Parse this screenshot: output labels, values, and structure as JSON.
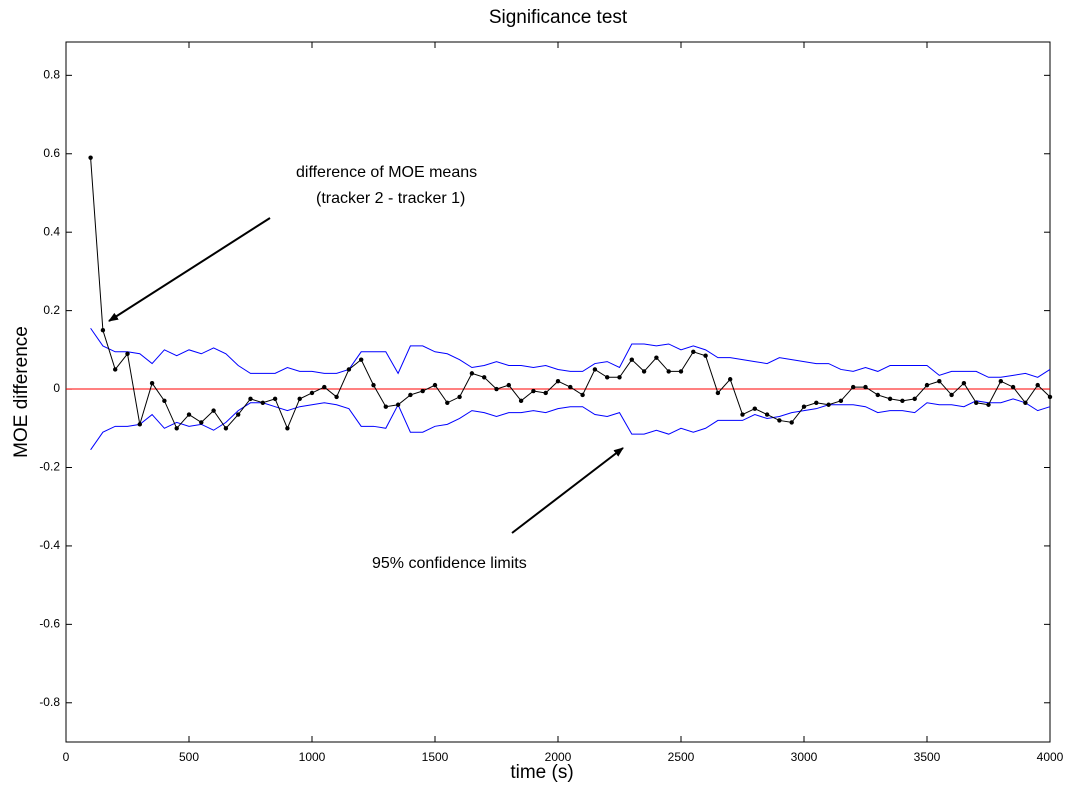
{
  "chart_data": {
    "type": "line",
    "title": "Significance test",
    "x_label": "time (s)",
    "y_label": "MOE difference",
    "xlim": [
      0,
      4000
    ],
    "xticks": [
      0,
      500,
      1000,
      1500,
      2000,
      2500,
      3000,
      3500,
      4000
    ],
    "ylim": [
      -0.9,
      0.885
    ],
    "yticks": [
      -0.8,
      -0.6,
      -0.4,
      -0.2,
      0,
      0.2,
      0.4,
      0.6,
      0.8
    ],
    "x": [
      100,
      150,
      200,
      250,
      300,
      350,
      400,
      450,
      500,
      550,
      600,
      650,
      700,
      750,
      800,
      850,
      900,
      950,
      1000,
      1050,
      1100,
      1150,
      1200,
      1250,
      1300,
      1350,
      1400,
      1450,
      1500,
      1550,
      1600,
      1650,
      1700,
      1750,
      1800,
      1850,
      1900,
      1950,
      2000,
      2050,
      2100,
      2150,
      2200,
      2250,
      2300,
      2350,
      2400,
      2450,
      2500,
      2550,
      2600,
      2650,
      2700,
      2750,
      2800,
      2850,
      2900,
      2950,
      3000,
      3050,
      3100,
      3150,
      3200,
      3250,
      3300,
      3350,
      3400,
      3450,
      3500,
      3550,
      3600,
      3650,
      3700,
      3750,
      3800,
      3850,
      3900,
      3950,
      4000
    ],
    "series": [
      {
        "color": "#0000ff",
        "markers": false,
        "values": [
          0.155,
          0.11,
          0.095,
          0.095,
          0.09,
          0.065,
          0.1,
          0.085,
          0.1,
          0.09,
          0.105,
          0.09,
          0.06,
          0.04,
          0.04,
          0.04,
          0.055,
          0.045,
          0.045,
          0.04,
          0.04,
          0.05,
          0.095,
          0.095,
          0.095,
          0.04,
          0.11,
          0.11,
          0.095,
          0.09,
          0.075,
          0.055,
          0.06,
          0.07,
          0.06,
          0.06,
          0.055,
          0.06,
          0.05,
          0.045,
          0.045,
          0.065,
          0.07,
          0.055,
          0.115,
          0.115,
          0.11,
          0.115,
          0.1,
          0.11,
          0.1,
          0.08,
          0.08,
          0.075,
          0.07,
          0.065,
          0.08,
          0.075,
          0.07,
          0.065,
          0.065,
          0.05,
          0.045,
          0.055,
          0.045,
          0.06,
          0.06,
          0.06,
          0.06,
          0.035,
          0.045,
          0.045,
          0.045,
          0.03,
          0.03,
          0.035,
          0.04,
          0.03,
          0.05
        ]
      },
      {
        "color": "#0000ff",
        "markers": false,
        "values": [
          -0.155,
          -0.11,
          -0.095,
          -0.095,
          -0.09,
          -0.065,
          -0.1,
          -0.085,
          -0.095,
          -0.09,
          -0.105,
          -0.085,
          -0.055,
          -0.035,
          -0.035,
          -0.045,
          -0.055,
          -0.045,
          -0.04,
          -0.035,
          -0.04,
          -0.05,
          -0.095,
          -0.095,
          -0.1,
          -0.04,
          -0.11,
          -0.11,
          -0.095,
          -0.09,
          -0.075,
          -0.055,
          -0.06,
          -0.07,
          -0.06,
          -0.06,
          -0.055,
          -0.06,
          -0.05,
          -0.045,
          -0.045,
          -0.065,
          -0.07,
          -0.06,
          -0.115,
          -0.115,
          -0.105,
          -0.115,
          -0.1,
          -0.11,
          -0.1,
          -0.08,
          -0.08,
          -0.08,
          -0.065,
          -0.075,
          -0.07,
          -0.06,
          -0.055,
          -0.05,
          -0.04,
          -0.04,
          -0.04,
          -0.045,
          -0.06,
          -0.055,
          -0.055,
          -0.06,
          -0.035,
          -0.04,
          -0.04,
          -0.045,
          -0.03,
          -0.035,
          -0.035,
          -0.025,
          -0.035,
          -0.055,
          -0.045
        ]
      },
      {
        "color": "#000000",
        "markers": true,
        "values": [
          0.59,
          0.15,
          0.05,
          0.09,
          -0.09,
          0.015,
          -0.03,
          -0.1,
          -0.065,
          -0.085,
          -0.055,
          -0.1,
          -0.065,
          -0.025,
          -0.035,
          -0.025,
          -0.1,
          -0.025,
          -0.01,
          0.005,
          -0.02,
          0.05,
          0.075,
          0.01,
          -0.045,
          -0.04,
          -0.015,
          -0.005,
          0.01,
          -0.035,
          -0.02,
          0.04,
          0.03,
          0,
          0.01,
          -0.03,
          -0.005,
          -0.01,
          0.02,
          0.005,
          -0.015,
          0.05,
          0.03,
          0.03,
          0.075,
          0.045,
          0.08,
          0.045,
          0.045,
          0.095,
          0.085,
          -0.01,
          0.025,
          -0.065,
          -0.05,
          -0.065,
          -0.08,
          -0.085,
          -0.045,
          -0.035,
          -0.04,
          -0.03,
          0.005,
          0.005,
          -0.015,
          -0.025,
          -0.03,
          -0.025,
          0.01,
          0.02,
          -0.015,
          0.015,
          -0.035,
          -0.04,
          0.02,
          0.005,
          -0.035,
          0.01,
          -0.02
        ]
      }
    ],
    "hlines": [
      {
        "y": 0,
        "color": "#ff0000"
      }
    ],
    "annotations": [
      "difference of MOE means",
      "(tracker 2 - tracker 1)",
      "95% confidence limits"
    ]
  }
}
